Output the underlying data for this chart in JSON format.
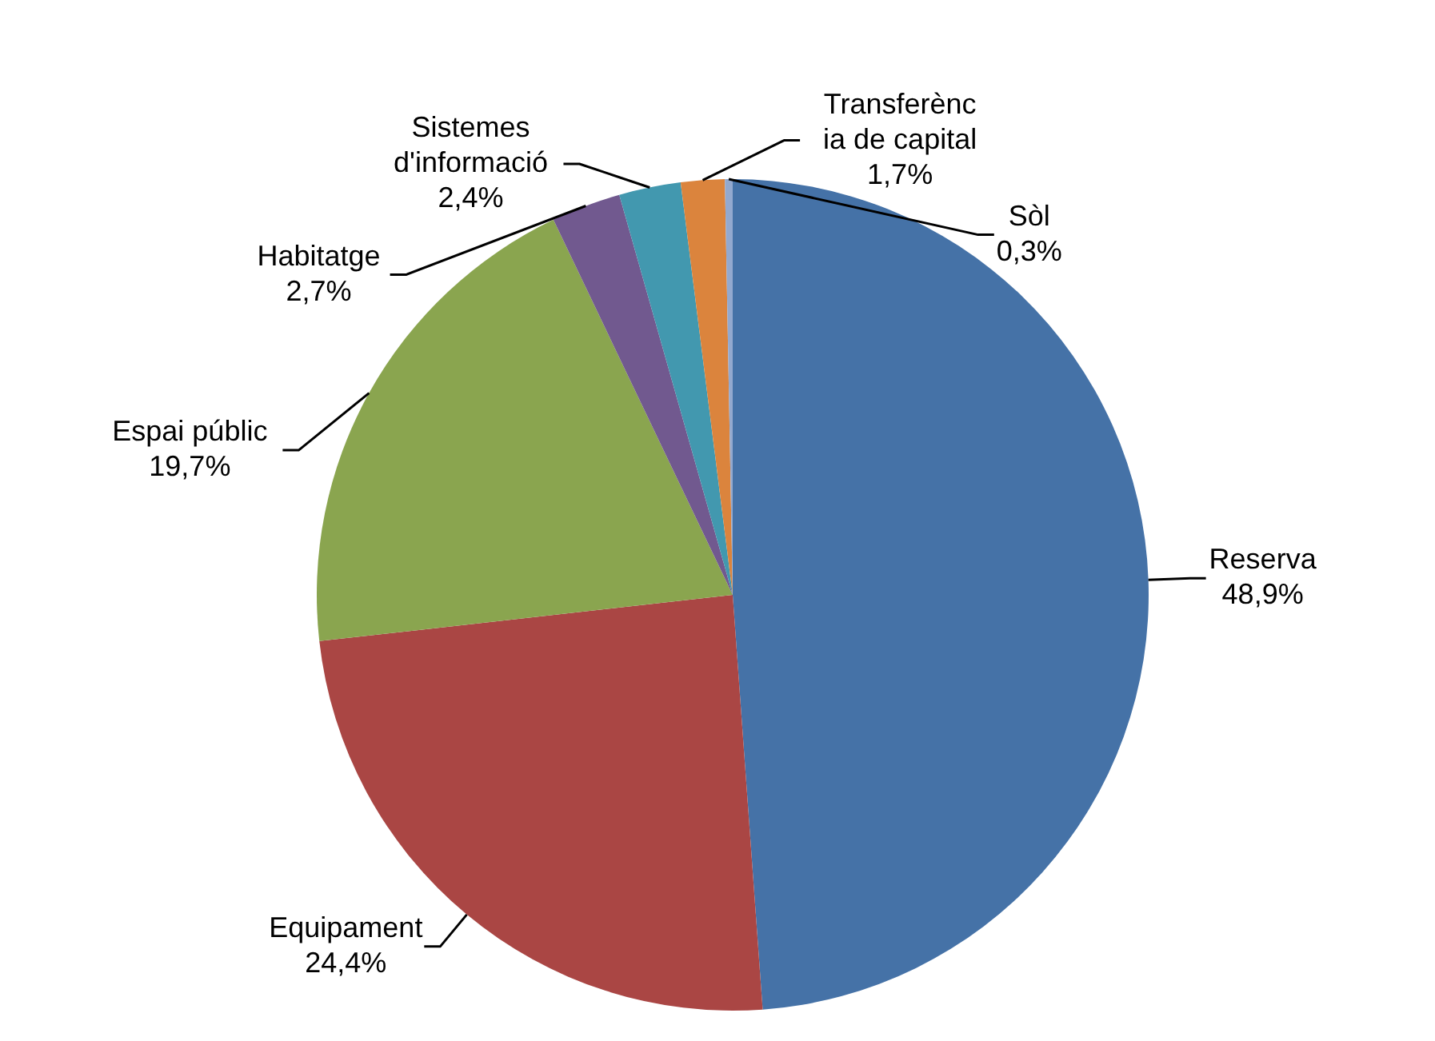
{
  "chart_data": {
    "type": "pie",
    "categories": [
      "Reserva",
      "Equipament",
      "Espai públic",
      "Habitatge",
      "Sistemes\nd'informació",
      "Transferènc\nia de capital",
      "Sòl"
    ],
    "values": [
      48.9,
      24.4,
      19.7,
      2.7,
      2.4,
      1.7,
      0.3
    ],
    "colors": [
      "#4572a7",
      "#aa4644",
      "#8aa54f",
      "#71598f",
      "#4298af",
      "#db843d",
      "#93a9cf"
    ],
    "value_labels": [
      "48,9%",
      "24,4%",
      "19,7%",
      "2,7%",
      "2,4%",
      "1,7%",
      "0,3%"
    ]
  }
}
